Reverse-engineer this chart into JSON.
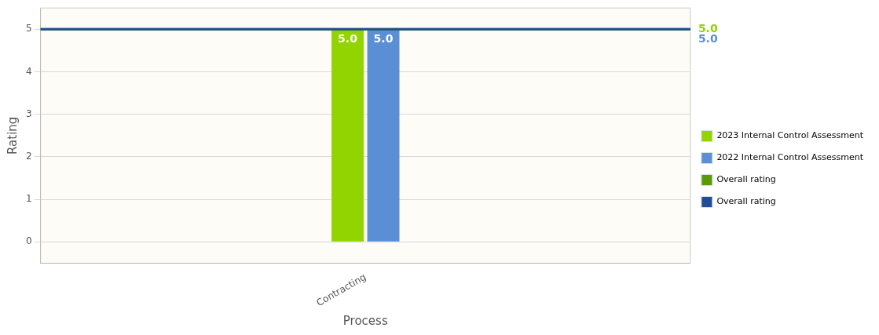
{
  "chart_data": {
    "type": "bar",
    "xlabel": "Process",
    "ylabel": "Rating",
    "categories": [
      "Contracting"
    ],
    "series": [
      {
        "name": "2023 Internal Control Assessment",
        "color": "#92d400",
        "values": [
          5
        ],
        "value_labels": [
          "5.0"
        ]
      },
      {
        "name": "2022 Internal Control Assessment",
        "color": "#5a8fd6",
        "values": [
          5
        ],
        "value_labels": [
          "5.0"
        ]
      }
    ],
    "ref_lines": [
      {
        "axis": "y",
        "value": 5,
        "label": "Overall rating",
        "color": "#5a9a08"
      },
      {
        "axis": "y",
        "value": 5,
        "label": "Overall rating",
        "color": "#1f4e96"
      }
    ],
    "annotations": [
      "5.0",
      "5.0"
    ],
    "ylim": [
      -0.5,
      5.5
    ],
    "yticks": [
      0,
      1,
      2,
      3,
      4,
      5
    ],
    "grid": "y",
    "legend": "right"
  }
}
